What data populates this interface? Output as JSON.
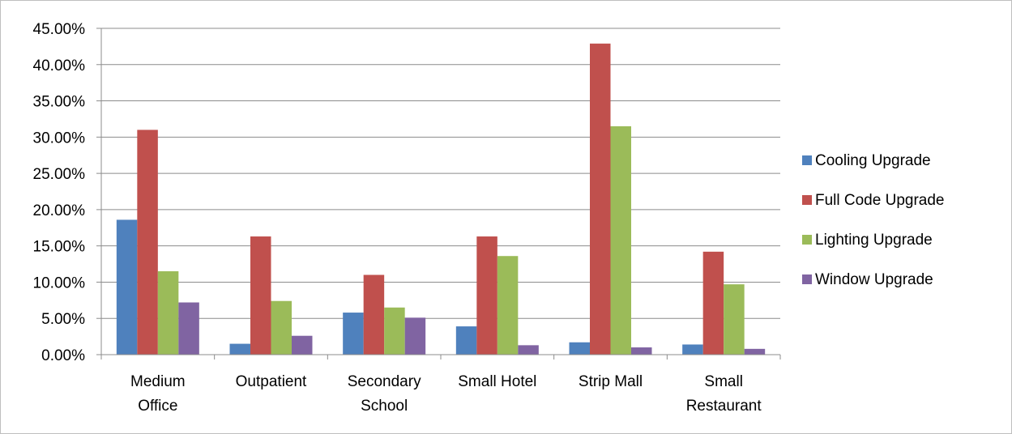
{
  "chart_data": {
    "type": "bar",
    "categories": [
      [
        "Medium",
        "Office"
      ],
      [
        "Outpatient"
      ],
      [
        "Secondary",
        "School"
      ],
      [
        "Small Hotel"
      ],
      [
        "Strip Mall"
      ],
      [
        "Small",
        "Restaurant"
      ]
    ],
    "series": [
      {
        "name": "Cooling Upgrade",
        "color": "#4f81bd",
        "values": [
          18.6,
          1.5,
          5.8,
          3.9,
          1.7,
          1.4
        ]
      },
      {
        "name": "Full Code Upgrade",
        "color": "#c0504d",
        "values": [
          31.0,
          16.3,
          11.0,
          16.3,
          42.9,
          14.2
        ]
      },
      {
        "name": "Lighting Upgrade",
        "color": "#9bbb59",
        "values": [
          11.5,
          7.4,
          6.5,
          13.6,
          31.5,
          9.7
        ]
      },
      {
        "name": "Window Upgrade",
        "color": "#8064a2",
        "values": [
          7.2,
          2.6,
          5.1,
          1.3,
          1.0,
          0.8
        ]
      }
    ],
    "ylim": [
      0,
      45
    ],
    "ytick_step": 5,
    "ytick_labels": [
      "0.00%",
      "5.00%",
      "10.00%",
      "15.00%",
      "20.00%",
      "25.00%",
      "30.00%",
      "35.00%",
      "40.00%",
      "45.00%"
    ],
    "title": "",
    "xlabel": "",
    "ylabel": "",
    "grid": true,
    "legend_position": "right"
  }
}
